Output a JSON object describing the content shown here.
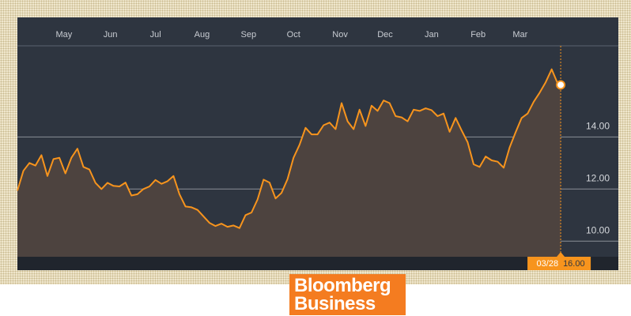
{
  "chart_data": {
    "type": "line",
    "x": [
      "03/31",
      "04/04",
      "04/08",
      "04/12",
      "04/16",
      "04/20",
      "04/24",
      "04/28",
      "05/02",
      "05/06",
      "05/10",
      "05/14",
      "05/18",
      "05/22",
      "05/26",
      "05/30",
      "06/03",
      "06/07",
      "06/11",
      "06/15",
      "06/19",
      "06/23",
      "06/27",
      "07/01",
      "07/05",
      "07/09",
      "07/13",
      "07/17",
      "07/21",
      "07/25",
      "07/29",
      "08/02",
      "08/06",
      "08/10",
      "08/14",
      "08/18",
      "08/22",
      "08/26",
      "08/30",
      "09/03",
      "09/07",
      "09/11",
      "09/15",
      "09/19",
      "09/23",
      "09/27",
      "10/01",
      "10/05",
      "10/09",
      "10/13",
      "10/17",
      "10/21",
      "10/25",
      "10/29",
      "11/02",
      "11/06",
      "11/10",
      "11/14",
      "11/18",
      "11/22",
      "11/26",
      "11/30",
      "12/04",
      "12/08",
      "12/12",
      "12/16",
      "12/20",
      "12/24",
      "12/28",
      "01/01",
      "01/05",
      "01/09",
      "01/13",
      "01/17",
      "01/21",
      "01/25",
      "01/29",
      "02/02",
      "02/06",
      "02/10",
      "02/14",
      "02/18",
      "02/22",
      "02/26",
      "03/02",
      "03/06",
      "03/10",
      "03/14",
      "03/18",
      "03/22",
      "03/26",
      "03/28"
    ],
    "values": [
      11.94,
      12.7,
      13.0,
      12.9,
      13.3,
      12.5,
      13.15,
      13.2,
      12.6,
      13.2,
      13.55,
      12.85,
      12.75,
      12.24,
      12.0,
      12.24,
      12.12,
      12.1,
      12.25,
      11.75,
      11.8,
      12.0,
      12.1,
      12.35,
      12.2,
      12.3,
      12.5,
      11.8,
      11.33,
      11.3,
      11.2,
      10.95,
      10.7,
      10.58,
      10.67,
      10.55,
      10.6,
      10.5,
      11.0,
      11.1,
      11.6,
      12.36,
      12.25,
      11.64,
      11.85,
      12.38,
      13.2,
      13.7,
      14.35,
      14.1,
      14.1,
      14.45,
      14.55,
      14.3,
      15.3,
      14.6,
      14.3,
      15.05,
      14.42,
      15.2,
      15.0,
      15.4,
      15.3,
      14.8,
      14.75,
      14.6,
      15.05,
      15.0,
      15.1,
      15.03,
      14.8,
      14.9,
      14.2,
      14.73,
      14.25,
      13.8,
      12.95,
      12.85,
      13.25,
      13.1,
      13.05,
      12.82,
      13.6,
      14.18,
      14.73,
      14.9,
      15.35,
      15.7,
      16.1,
      16.6,
      16.05,
      16.0
    ],
    "value_labels": [
      null,
      null,
      null,
      null,
      null,
      null,
      null,
      null,
      null,
      null,
      null,
      null,
      null,
      null,
      null,
      null,
      null,
      null,
      null,
      null,
      null,
      null,
      null,
      null,
      null,
      null,
      null,
      null,
      null,
      null,
      null,
      null,
      null,
      null,
      null,
      null,
      null,
      null,
      null,
      null,
      null,
      null,
      null,
      null,
      null,
      null,
      null,
      null,
      null,
      null,
      null,
      null,
      null,
      null,
      null,
      null,
      null,
      null,
      null,
      null,
      null,
      null,
      null,
      null,
      null,
      null,
      null,
      null,
      null,
      null,
      null,
      null,
      null,
      null,
      null,
      null,
      null,
      null,
      null,
      null,
      null,
      null,
      null,
      null,
      null,
      null,
      null,
      null,
      null,
      null,
      null,
      "16.00"
    ],
    "color": "#f7941d",
    "area_color": "#4d433f",
    "ylim": [
      9.4,
      17.5
    ],
    "yticks": [
      {
        "value": 10,
        "label": "10.00"
      },
      {
        "value": 12,
        "label": "12.00"
      },
      {
        "value": 14,
        "label": "14.00"
      }
    ],
    "xticks": [
      {
        "value": "05/01",
        "label": "May"
      },
      {
        "value": "06/01",
        "label": "Jun"
      },
      {
        "value": "07/01",
        "label": "Jul"
      },
      {
        "value": "08/01",
        "label": "Aug"
      },
      {
        "value": "09/01",
        "label": "Sep"
      },
      {
        "value": "10/01",
        "label": "Oct"
      },
      {
        "value": "11/01",
        "label": "Nov"
      },
      {
        "value": "12/01",
        "label": "Dec"
      },
      {
        "value": "01/01",
        "label": "Jan"
      },
      {
        "value": "02/01",
        "label": "Feb"
      },
      {
        "value": "03/01",
        "label": "Mar"
      }
    ],
    "grid": true
  },
  "footer": {
    "logo_line1": "Bloomberg",
    "logo_line2": "Business"
  }
}
